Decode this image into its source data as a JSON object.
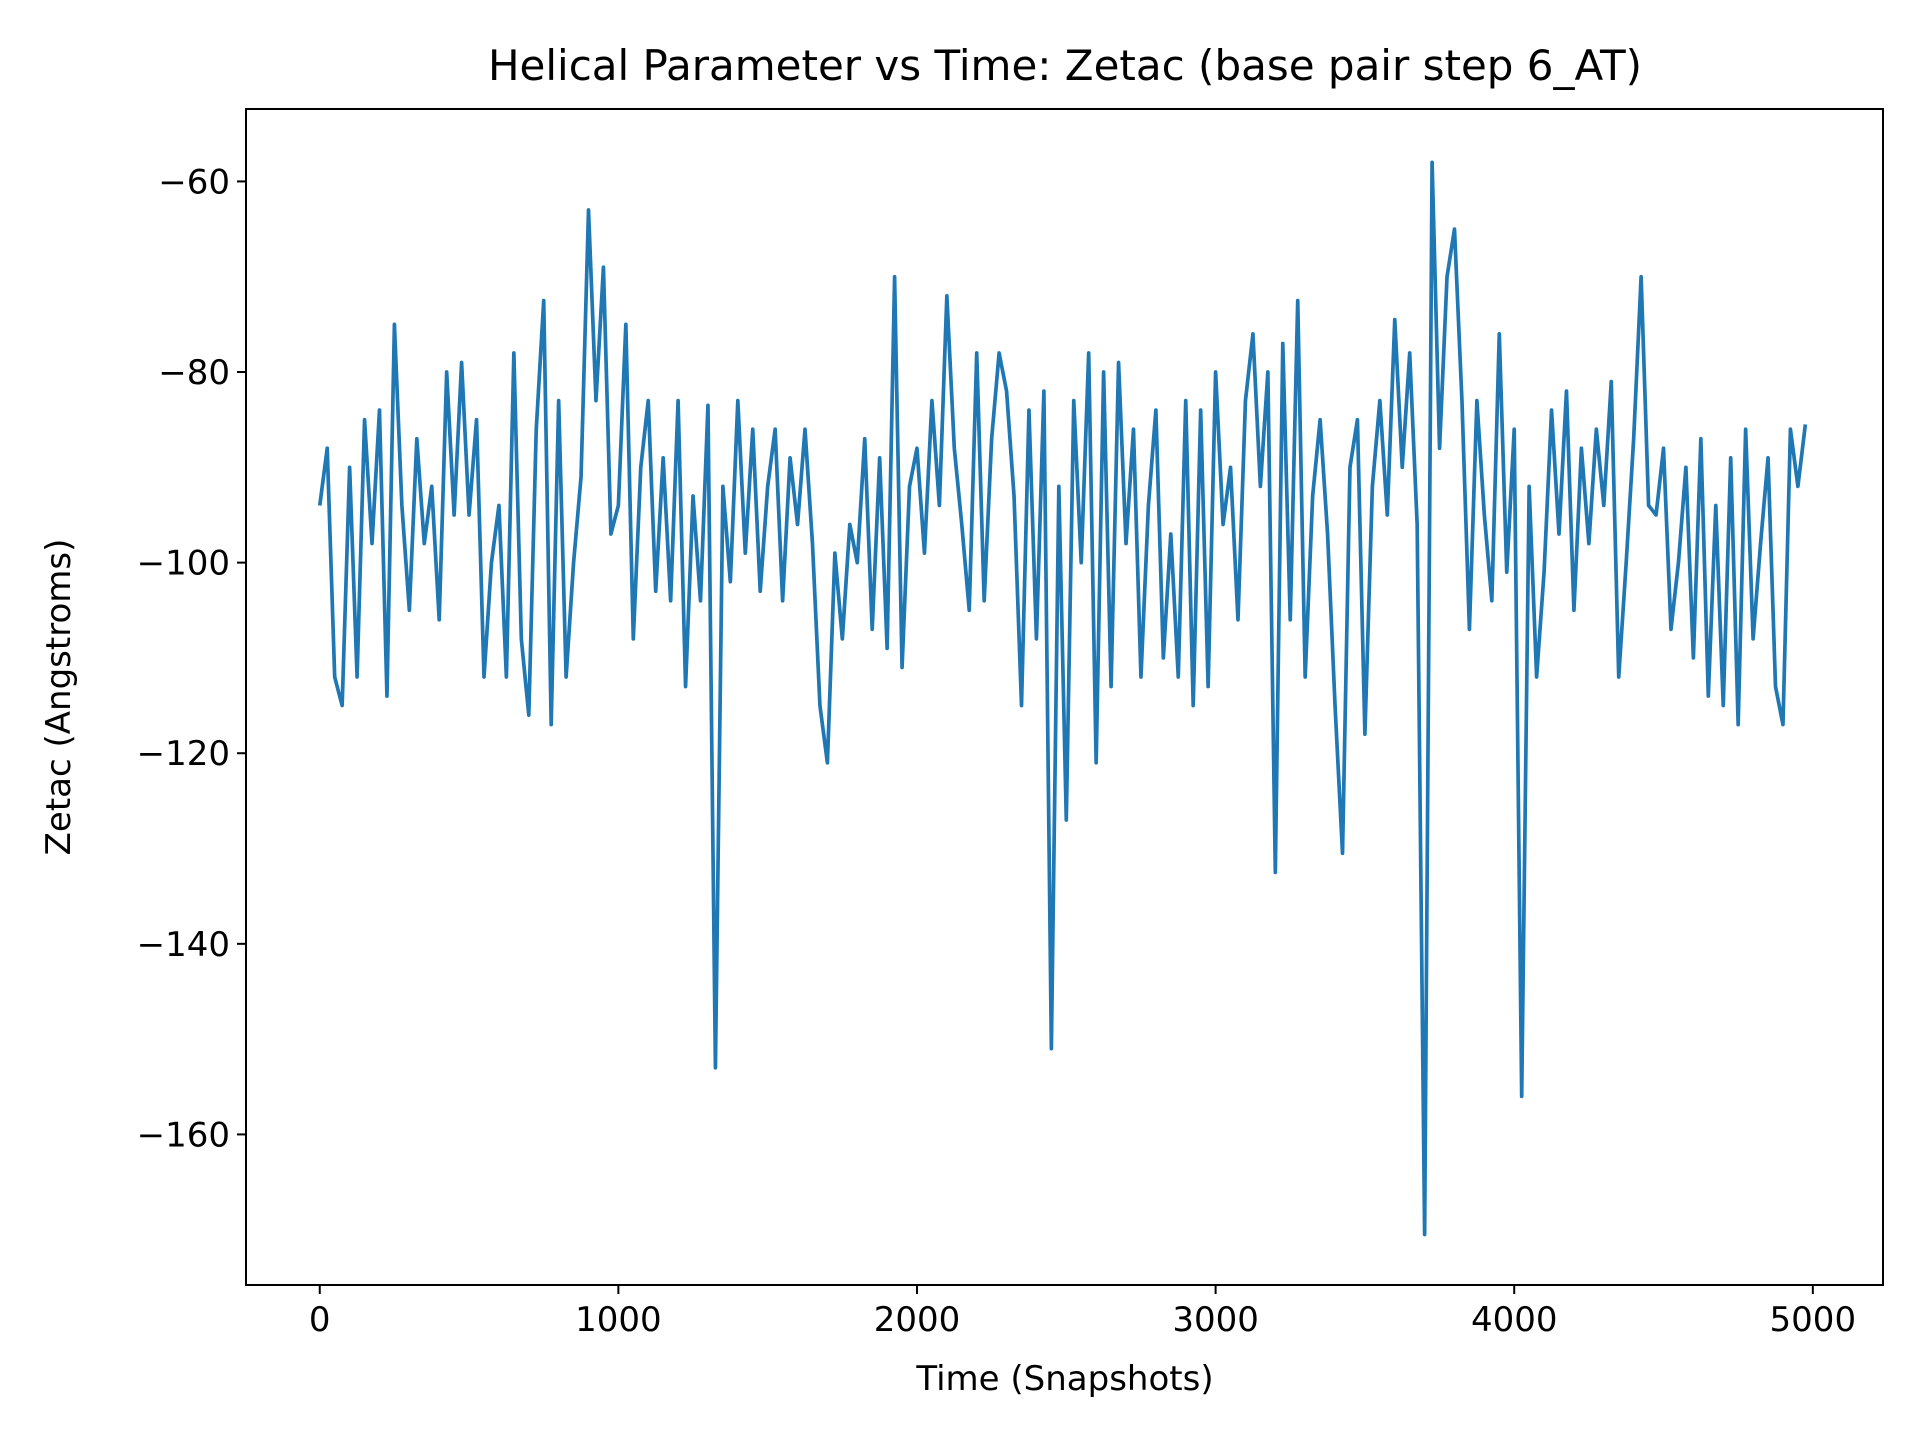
{
  "chart_data": {
    "type": "line",
    "title": "Helical Parameter vs Time: Zetac (base pair step 6_AT)",
    "x_label": "Time (Snapshots)",
    "y_label": "Zetac (Angstroms)",
    "x": [
      0,
      25,
      50,
      75,
      100,
      125,
      150,
      175,
      200,
      225,
      250,
      275,
      300,
      325,
      350,
      375,
      400,
      425,
      450,
      475,
      500,
      525,
      550,
      575,
      600,
      625,
      650,
      675,
      700,
      725,
      750,
      775,
      800,
      825,
      850,
      875,
      900,
      925,
      950,
      975,
      1000,
      1025,
      1050,
      1075,
      1100,
      1125,
      1150,
      1175,
      1200,
      1225,
      1250,
      1275,
      1300,
      1325,
      1350,
      1375,
      1400,
      1425,
      1450,
      1475,
      1500,
      1525,
      1550,
      1575,
      1600,
      1625,
      1650,
      1675,
      1700,
      1725,
      1750,
      1775,
      1800,
      1825,
      1850,
      1875,
      1900,
      1925,
      1950,
      1975,
      2000,
      2025,
      2050,
      2075,
      2100,
      2125,
      2150,
      2175,
      2200,
      2225,
      2250,
      2275,
      2300,
      2325,
      2350,
      2375,
      2400,
      2425,
      2450,
      2475,
      2500,
      2525,
      2550,
      2575,
      2600,
      2625,
      2650,
      2675,
      2700,
      2725,
      2750,
      2775,
      2800,
      2825,
      2850,
      2875,
      2900,
      2925,
      2950,
      2975,
      3000,
      3025,
      3050,
      3075,
      3100,
      3125,
      3150,
      3175,
      3200,
      3225,
      3250,
      3275,
      3300,
      3325,
      3350,
      3375,
      3400,
      3425,
      3450,
      3475,
      3500,
      3525,
      3550,
      3575,
      3600,
      3625,
      3650,
      3675,
      3700,
      3725,
      3750,
      3775,
      3800,
      3825,
      3850,
      3875,
      3900,
      3925,
      3950,
      3975,
      4000,
      4025,
      4050,
      4075,
      4100,
      4125,
      4150,
      4175,
      4200,
      4225,
      4250,
      4275,
      4300,
      4325,
      4350,
      4375,
      4400,
      4425,
      4450,
      4475,
      4500,
      4525,
      4550,
      4575,
      4600,
      4625,
      4650,
      4675,
      4700,
      4725,
      4750,
      4775,
      4800,
      4825,
      4850,
      4875,
      4900,
      4925,
      4950,
      4975
    ],
    "series": [
      {
        "color": "#1f77b4",
        "values": [
          -94,
          -88,
          -112,
          -115,
          -90,
          -112,
          -85,
          -98,
          -84,
          -114,
          -75,
          -94,
          -105,
          -87,
          -98,
          -92,
          -106,
          -80,
          -95,
          -79,
          -95,
          -85,
          -112,
          -100,
          -94,
          -112,
          -78,
          -108,
          -116,
          -86,
          -72.5,
          -117,
          -83,
          -112,
          -100,
          -91,
          -63,
          -83,
          -69,
          -97,
          -94,
          -75,
          -108,
          -90,
          -83,
          -103,
          -89,
          -104,
          -83,
          -113,
          -93,
          -104,
          -83.5,
          -153,
          -92,
          -102,
          -83,
          -99,
          -86,
          -103,
          -92,
          -86,
          -104,
          -89,
          -96,
          -86,
          -98,
          -115,
          -121,
          -99,
          -108,
          -96,
          -100,
          -87,
          -107,
          -89,
          -109,
          -70,
          -111,
          -92,
          -88,
          -99,
          -83,
          -94,
          -72,
          -88,
          -96,
          -105,
          -78,
          -104,
          -87,
          -78,
          -82,
          -93,
          -115,
          -84,
          -108,
          -82,
          -151,
          -92,
          -127,
          -83,
          -100,
          -78,
          -121,
          -80,
          -113,
          -79,
          -98,
          -86,
          -112,
          -94,
          -84,
          -110,
          -97,
          -112,
          -83,
          -115,
          -84,
          -113,
          -80,
          -96,
          -90,
          -106,
          -83,
          -76,
          -92,
          -80,
          -132.5,
          -77,
          -106,
          -72.5,
          -112,
          -93,
          -85,
          -97,
          -115,
          -130.5,
          -90,
          -85,
          -118,
          -92,
          -83,
          -95,
          -74.5,
          -90,
          -78,
          -96,
          -170.5,
          -58,
          -88,
          -70,
          -65,
          -83,
          -107,
          -83,
          -95,
          -104,
          -76,
          -101,
          -86,
          -156,
          -92,
          -112,
          -101,
          -84,
          -97,
          -82,
          -105,
          -88,
          -98,
          -86,
          -94,
          -81,
          -112,
          -100,
          -87,
          -70,
          -94,
          -95,
          -88,
          -107,
          -100,
          -90,
          -110,
          -87,
          -114,
          -94,
          -115,
          -89,
          -117,
          -86,
          -108,
          -98,
          -89,
          -113,
          -117,
          -86,
          -92,
          -85.5
        ]
      }
    ],
    "xlim": [
      -247,
      5235
    ],
    "ylim": [
      -175.8,
      -52.4
    ],
    "xticks": [
      0,
      1000,
      2000,
      3000,
      4000,
      5000
    ],
    "yticks": [
      {
        "value": -60,
        "label": "−60"
      },
      {
        "value": -80,
        "label": "−80"
      },
      {
        "value": -100,
        "label": "−100"
      },
      {
        "value": -120,
        "label": "−120"
      },
      {
        "value": -140,
        "label": "−140"
      },
      {
        "value": -160,
        "label": "−160"
      }
    ]
  }
}
